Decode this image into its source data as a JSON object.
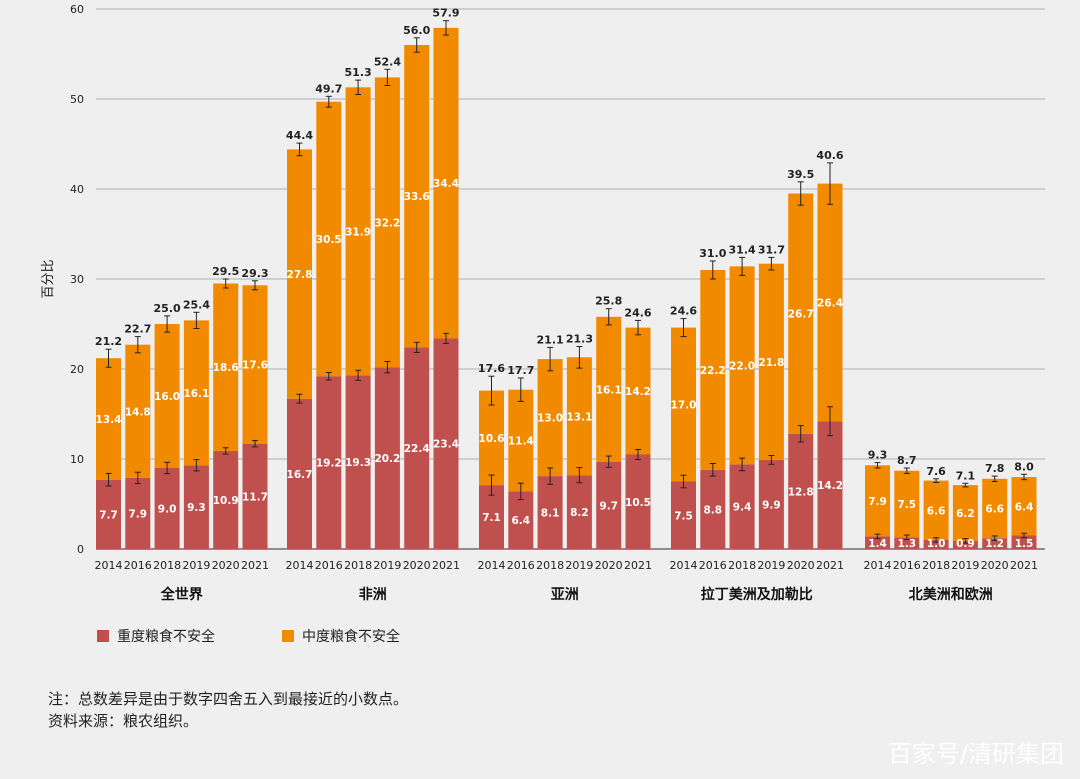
{
  "chart_data": {
    "type": "bar",
    "stacked": true,
    "ylabel": "百分比",
    "ylim": [
      0,
      60
    ],
    "yticks": [
      0,
      10,
      20,
      30,
      40,
      50,
      60
    ],
    "grid": true,
    "legend_position": "bottom-left",
    "years": [
      "2014",
      "2016",
      "2018",
      "2019",
      "2020",
      "2021"
    ],
    "groups": [
      {
        "name": "全世界",
        "severe": [
          7.7,
          7.9,
          9.0,
          9.3,
          10.9,
          11.7
        ],
        "moderate": [
          13.4,
          14.8,
          16.0,
          16.1,
          18.6,
          17.6
        ],
        "total": [
          21.2,
          22.7,
          25.0,
          25.4,
          29.5,
          29.3
        ],
        "err": [
          1.0,
          0.9,
          0.9,
          0.9,
          0.5,
          0.5
        ]
      },
      {
        "name": "非洲",
        "severe": [
          16.7,
          19.2,
          19.3,
          20.2,
          22.4,
          23.4
        ],
        "moderate": [
          27.8,
          30.5,
          31.9,
          32.2,
          33.6,
          34.4
        ],
        "total": [
          44.4,
          49.7,
          51.3,
          52.4,
          56.0,
          57.9
        ],
        "err": [
          0.7,
          0.6,
          0.8,
          0.9,
          0.8,
          0.8
        ]
      },
      {
        "name": "亚洲",
        "severe": [
          7.1,
          6.4,
          8.1,
          8.2,
          9.7,
          10.5
        ],
        "moderate": [
          10.6,
          11.4,
          13.0,
          13.1,
          16.1,
          14.2
        ],
        "total": [
          17.6,
          17.7,
          21.1,
          21.3,
          25.8,
          24.6
        ],
        "err": [
          1.6,
          1.3,
          1.3,
          1.2,
          0.9,
          0.8
        ]
      },
      {
        "name": "拉丁美洲及加勒比",
        "severe": [
          7.5,
          8.8,
          9.4,
          9.9,
          12.8,
          14.2
        ],
        "moderate": [
          17.0,
          22.2,
          22.0,
          21.8,
          26.7,
          26.4
        ],
        "total": [
          24.6,
          31.0,
          31.4,
          31.7,
          39.5,
          40.6
        ],
        "err": [
          1.0,
          1.0,
          1.0,
          0.7,
          1.3,
          2.3
        ]
      },
      {
        "name": "北美洲和欧洲",
        "severe": [
          1.4,
          1.3,
          1.0,
          0.9,
          1.2,
          1.5
        ],
        "moderate": [
          7.9,
          7.5,
          6.6,
          6.2,
          6.6,
          6.4
        ],
        "total": [
          9.3,
          8.7,
          7.6,
          7.1,
          7.8,
          8.0
        ],
        "err": [
          0.3,
          0.3,
          0.2,
          0.2,
          0.3,
          0.3
        ]
      }
    ],
    "legend": [
      {
        "name": "重度粮食不安全",
        "color": "#c0504d"
      },
      {
        "name": "中度粮食不安全",
        "color": "#f28a00"
      }
    ],
    "colors": {
      "severe": "#c0504d",
      "moderate": "#f28a00",
      "grid": "#9a9a9a",
      "errorbar": "#222222"
    }
  },
  "notes": {
    "line1": "注：总数差异是由于数字四舍五入到最接近的小数点。",
    "line2": "资料来源：粮农组织。"
  },
  "watermark": "百家号/清研集团"
}
